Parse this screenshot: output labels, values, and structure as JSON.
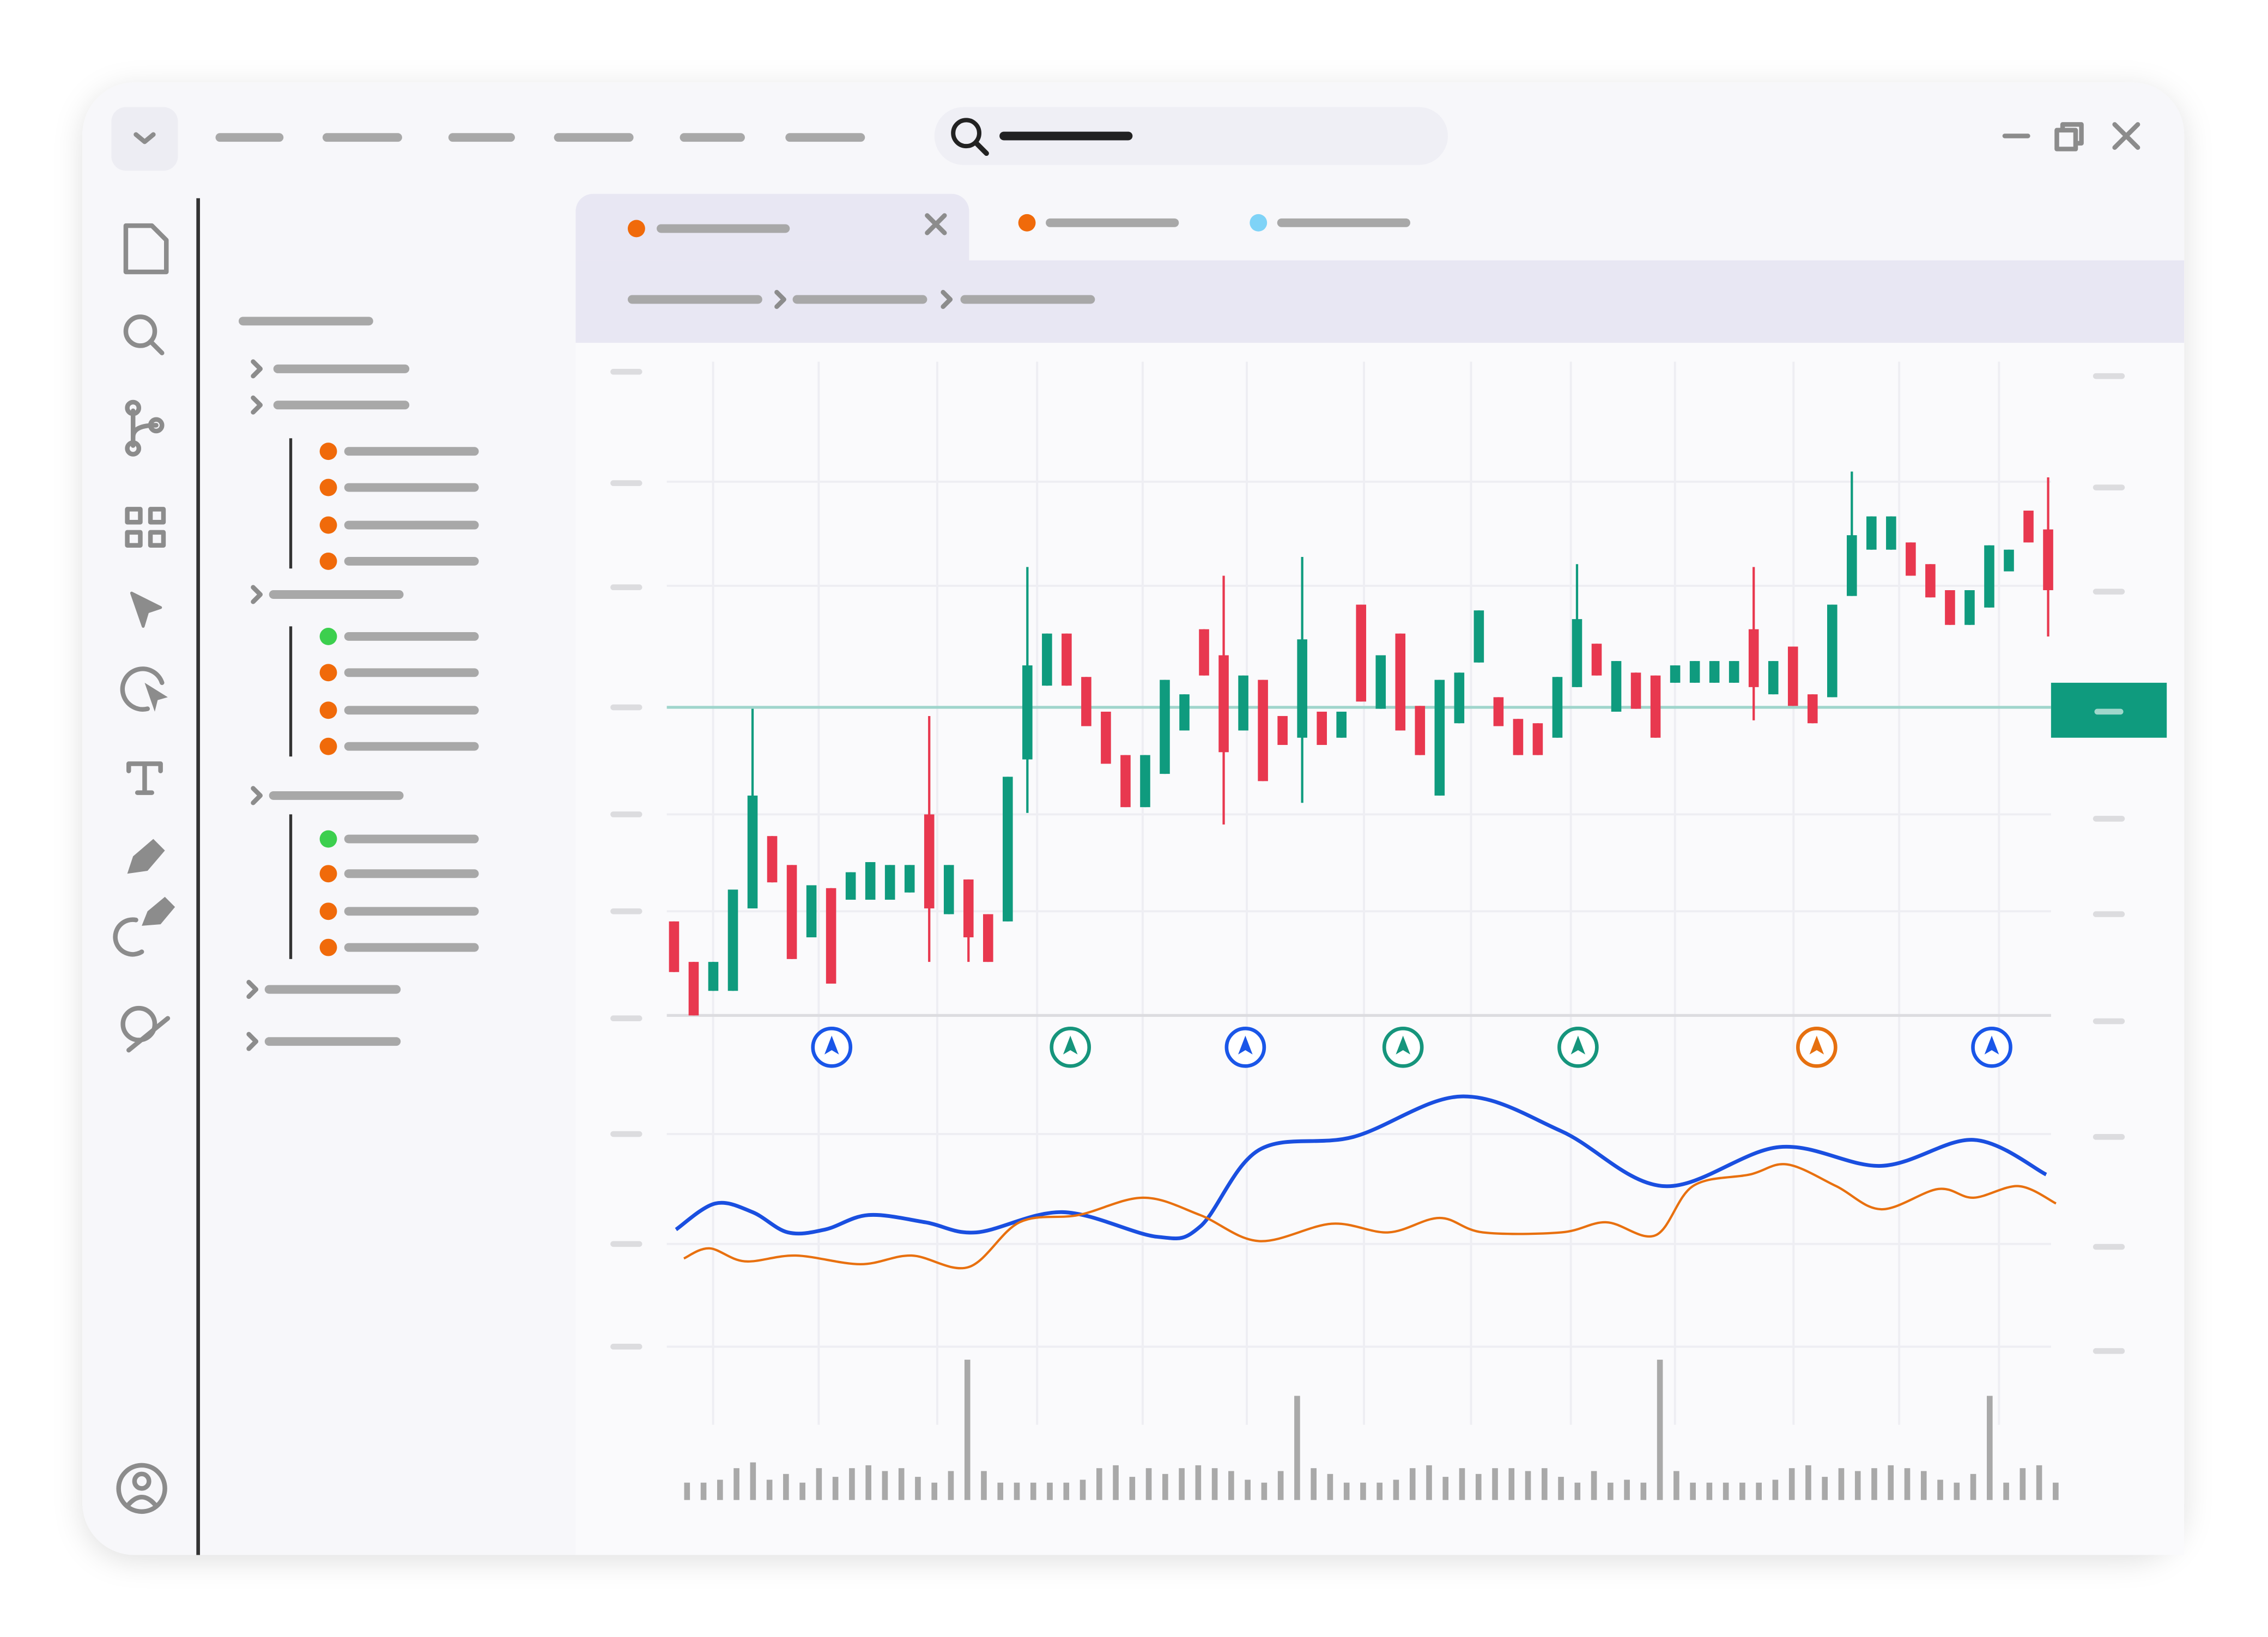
{
  "chart_data": [
    {
      "type": "candlestick",
      "xlim": [
        0,
        70
      ],
      "ylim": [
        0,
        452
      ],
      "up_color": "#0f9b7e",
      "down_color": "#e8384f",
      "reference_line": 213,
      "reference_color": "#9fd5cc",
      "open": [
        65,
        37,
        17,
        17,
        74,
        124,
        104,
        54,
        88,
        80,
        80,
        80,
        85,
        139,
        70,
        94,
        70,
        65,
        177,
        228,
        264,
        234,
        210,
        180,
        144,
        167,
        197,
        267,
        249,
        197,
        232,
        207,
        192,
        210,
        192,
        284,
        212,
        264,
        214,
        152,
        202,
        244,
        220,
        205,
        202,
        192,
        227,
        257,
        210,
        237,
        235,
        230,
        230,
        230,
        230,
        267,
        222,
        255,
        222,
        220,
        290,
        322,
        322,
        327,
        312,
        294,
        270,
        282,
        307,
        349,
        336
      ],
      "close": [
        30,
        0,
        37,
        87,
        152,
        92,
        39,
        90,
        22,
        99,
        106,
        104,
        104,
        74,
        104,
        54,
        37,
        165,
        242,
        264,
        228,
        200,
        174,
        144,
        180,
        232,
        222,
        235,
        182,
        235,
        162,
        187,
        260,
        187,
        210,
        217,
        249,
        197,
        180,
        232,
        237,
        280,
        200,
        180,
        180,
        234,
        274,
        235,
        245,
        212,
        192,
        242,
        245,
        245,
        245,
        227,
        245,
        214,
        202,
        284,
        332,
        345,
        345,
        304,
        289,
        270,
        294,
        325,
        322,
        327,
        294
      ],
      "high": [
        65,
        37,
        37,
        87,
        212,
        124,
        104,
        90,
        88,
        99,
        106,
        104,
        104,
        207,
        104,
        94,
        70,
        165,
        310,
        264,
        264,
        234,
        210,
        180,
        180,
        232,
        222,
        267,
        304,
        235,
        232,
        207,
        317,
        210,
        210,
        284,
        249,
        264,
        214,
        232,
        237,
        280,
        220,
        205,
        202,
        234,
        312,
        257,
        245,
        237,
        235,
        242,
        245,
        245,
        245,
        310,
        245,
        255,
        222,
        284,
        376,
        345,
        345,
        327,
        312,
        294,
        294,
        325,
        322,
        349,
        372
      ],
      "low": [
        30,
        0,
        17,
        17,
        74,
        92,
        39,
        54,
        22,
        80,
        80,
        80,
        85,
        37,
        70,
        37,
        37,
        65,
        140,
        228,
        228,
        200,
        174,
        144,
        144,
        167,
        197,
        235,
        132,
        197,
        162,
        187,
        147,
        187,
        192,
        217,
        212,
        197,
        180,
        152,
        202,
        244,
        200,
        180,
        180,
        192,
        227,
        235,
        210,
        212,
        192,
        230,
        230,
        230,
        230,
        204,
        222,
        214,
        202,
        220,
        290,
        322,
        322,
        304,
        289,
        270,
        270,
        282,
        307,
        327,
        262
      ]
    },
    {
      "type": "line",
      "xlim": [
        0,
        71
      ],
      "ylim": [
        0,
        160
      ],
      "series": [
        {
          "color": "#1a4fe0",
          "x": [
            0.1,
            2.1,
            4,
            5.8,
            7.7,
            9.9,
            12.8,
            15.4,
            19.8,
            24.6,
            26.8,
            29.8,
            34.6,
            40.1,
            45.2,
            50.4,
            56.3,
            61.5,
            66.2,
            69.9
          ],
          "values": [
            50,
            68,
            62,
            48,
            50,
            60,
            55,
            48,
            62,
            45,
            52,
            105,
            114,
            142,
            118,
            80,
            107,
            94,
            112,
            88
          ]
        },
        {
          "color": "#e8700f",
          "x": [
            0.5,
            1.8,
            3.6,
            6.2,
            9.5,
            12.1,
            15,
            17.6,
            20.6,
            23.9,
            26.8,
            29.8,
            33.5,
            36.4,
            39,
            41.2,
            45.2,
            47.5,
            50,
            51.9,
            54.8,
            56.7,
            59.2,
            61.5,
            64.4,
            66.2,
            68.5,
            70.4
          ],
          "values": [
            30,
            37,
            28,
            32,
            26,
            32,
            24,
            55,
            60,
            72,
            60,
            42,
            54,
            48,
            58,
            48,
            48,
            55,
            46,
            80,
            88,
            95,
            80,
            64,
            78,
            72,
            80,
            68
          ]
        }
      ]
    },
    {
      "type": "bar",
      "ylim": [
        0,
        100
      ],
      "color": "#a9a9a9",
      "values": [
        12,
        12,
        14,
        22,
        26,
        14,
        18,
        12,
        22,
        16,
        22,
        24,
        20,
        22,
        16,
        12,
        20,
        97,
        20,
        12,
        12,
        12,
        12,
        12,
        14,
        22,
        24,
        16,
        22,
        18,
        22,
        24,
        22,
        20,
        14,
        12,
        20,
        72,
        22,
        18,
        12,
        12,
        12,
        14,
        22,
        24,
        16,
        22,
        18,
        22,
        22,
        20,
        22,
        16,
        12,
        20,
        12,
        14,
        12,
        97,
        20,
        12,
        12,
        12,
        12,
        12,
        14,
        22,
        24,
        16,
        22,
        20,
        22,
        24,
        22,
        20,
        14,
        12,
        18,
        72,
        12,
        22,
        24,
        12
      ]
    }
  ]
}
